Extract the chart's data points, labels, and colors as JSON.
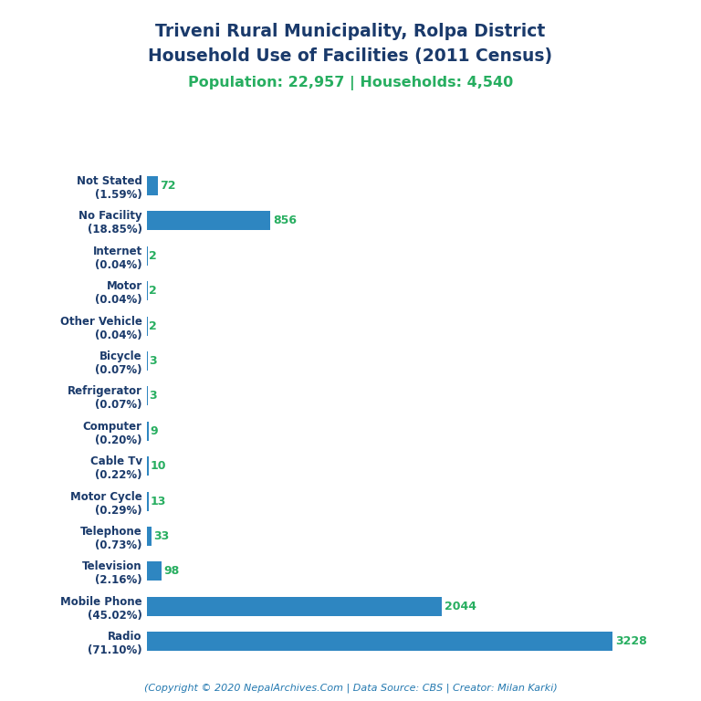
{
  "title_line1": "Triveni Rural Municipality, Rolpa District",
  "title_line2": "Household Use of Facilities (2011 Census)",
  "subtitle": "Population: 22,957 | Households: 4,540",
  "footer": "(Copyright © 2020 NepalArchives.Com | Data Source: CBS | Creator: Milan Karki)",
  "categories": [
    "Not Stated\n(1.59%)",
    "No Facility\n(18.85%)",
    "Internet\n(0.04%)",
    "Motor\n(0.04%)",
    "Other Vehicle\n(0.04%)",
    "Bicycle\n(0.07%)",
    "Refrigerator\n(0.07%)",
    "Computer\n(0.20%)",
    "Cable Tv\n(0.22%)",
    "Motor Cycle\n(0.29%)",
    "Telephone\n(0.73%)",
    "Television\n(2.16%)",
    "Mobile Phone\n(45.02%)",
    "Radio\n(71.10%)"
  ],
  "values": [
    72,
    856,
    2,
    2,
    2,
    3,
    3,
    9,
    10,
    13,
    33,
    98,
    2044,
    3228
  ],
  "bar_color": "#2e86c1",
  "value_color": "#27ae60",
  "title_color": "#1a3a6b",
  "subtitle_color": "#27ae60",
  "footer_color": "#2479b0",
  "background_color": "#ffffff",
  "xlim": [
    0,
    3600
  ],
  "figsize": [
    7.68,
    7.68
  ],
  "dpi": 100
}
